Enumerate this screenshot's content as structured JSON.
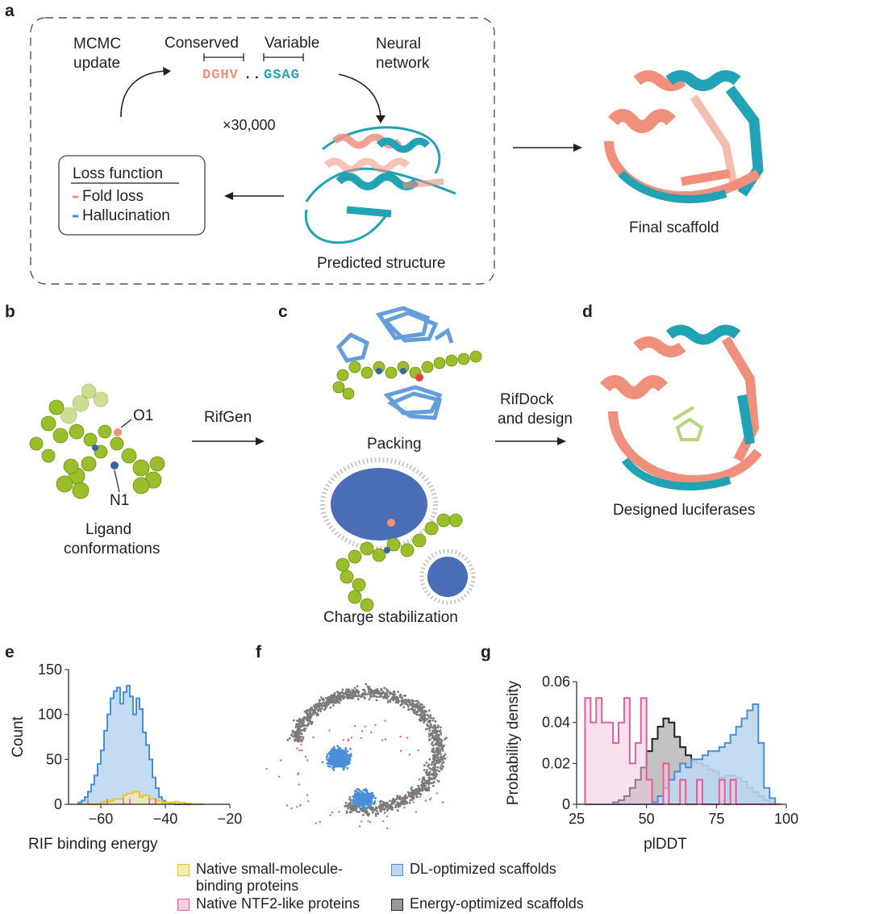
{
  "panels": {
    "a": {
      "letter": "a",
      "mcmc_line1": "MCMC",
      "mcmc_line2": "update",
      "conserved_label": "Conserved",
      "variable_label": "Variable",
      "conserved_seq": "DGHV",
      "dots": "..",
      "variable_seq": "GSAG",
      "nn_line1": "Neural",
      "nn_line2": "network",
      "iterations": "×30,000",
      "loss_title": "Loss function",
      "loss_items": [
        "Fold loss",
        "Hallucination"
      ],
      "predicted_label": "Predicted structure",
      "final_label": "Final scaffold"
    },
    "b": {
      "letter": "b",
      "o1": "O1",
      "n1": "N1",
      "caption_line1": "Ligand",
      "caption_line2": "conformations",
      "rifgen": "RifGen"
    },
    "c": {
      "letter": "c",
      "packing": "Packing",
      "charge": "Charge stabilization",
      "rifdock_line1": "RifDock",
      "rifdock_line2": "and design"
    },
    "d": {
      "letter": "d",
      "caption": "Designed luciferases"
    },
    "e": {
      "letter": "e"
    },
    "f": {
      "letter": "f"
    },
    "g": {
      "letter": "g"
    }
  },
  "colors": {
    "salmon": "#f0907c",
    "teal": "#1fa3b5",
    "ligand_green": "#9bbf2a",
    "dl_blue": "#4a8fd6",
    "dl_blue_fill": "#bcd8f0",
    "energy_gray": "#7a7a7a",
    "native_small_yellow": "#e6c62c",
    "native_ntf2_pink": "#e0609a"
  },
  "legend": [
    {
      "key": "native_small",
      "line1": "Native small-molecule-",
      "line2": "binding proteins",
      "color": "#e6c62c"
    },
    {
      "key": "native_ntf2",
      "line1": "Native NTF2-like proteins",
      "line2": "",
      "color": "#e0609a"
    },
    {
      "key": "dl",
      "line1": "DL-optimized scaffolds",
      "line2": "",
      "color": "#4a8fd6"
    },
    {
      "key": "energy",
      "line1": "Energy-optimized scaffolds",
      "line2": "",
      "color": "#555555"
    }
  ],
  "chart_data": [
    {
      "panel": "e",
      "type": "area",
      "xlabel": "RIF binding energy",
      "ylabel": "Count",
      "xlim": [
        -70,
        -20
      ],
      "ylim": [
        0,
        150
      ],
      "xticks": [
        -60,
        -40,
        -20
      ],
      "yticks": [
        0,
        50,
        100,
        150
      ],
      "bin_edges": [
        -67,
        -66,
        -65,
        -64,
        -63,
        -62,
        -61,
        -60,
        -59,
        -58,
        -57,
        -56,
        -55,
        -54,
        -53,
        -52,
        -51,
        -50,
        -49,
        -48,
        -47,
        -46,
        -45,
        -44,
        -43,
        -42,
        -41,
        -40,
        -39,
        -38,
        -37,
        -36,
        -35,
        -34,
        -33,
        -32,
        -31,
        -30,
        -29,
        -28
      ],
      "series": [
        {
          "key": "dl",
          "values": [
            2,
            4,
            8,
            14,
            22,
            32,
            45,
            60,
            82,
            100,
            118,
            126,
            130,
            112,
            125,
            132,
            120,
            100,
            118,
            106,
            80,
            66,
            50,
            30,
            18,
            8,
            4,
            2,
            1,
            1,
            0,
            0,
            0,
            0,
            0,
            0,
            0,
            0,
            0
          ]
        },
        {
          "key": "native_small",
          "values": [
            0,
            0,
            0,
            0,
            0,
            0,
            0,
            2,
            3,
            3,
            4,
            6,
            6,
            6,
            10,
            12,
            12,
            14,
            14,
            8,
            10,
            10,
            6,
            6,
            4,
            4,
            2,
            2,
            2,
            2,
            3,
            2,
            2,
            1,
            1,
            0,
            0,
            0,
            0
          ]
        }
      ],
      "ntf2_ticks": [
        -64,
        -58,
        -53,
        -51,
        -45,
        -43
      ]
    },
    {
      "panel": "f",
      "type": "scatter",
      "description_series": [
        "dl",
        "energy",
        "native_ntf2"
      ]
    },
    {
      "panel": "g",
      "type": "area",
      "xlabel": "plDDT",
      "ylabel": "Probability density",
      "xlim": [
        25,
        100
      ],
      "ylim": [
        0,
        0.06
      ],
      "xticks": [
        25,
        50,
        75,
        100
      ],
      "yticks": [
        0,
        0.02,
        0.04,
        0.06
      ],
      "ytick_labels": [
        "0",
        "0.02",
        "0.04",
        "0.06"
      ],
      "bin_edges": [
        28,
        30,
        32,
        34,
        36,
        38,
        40,
        42,
        44,
        46,
        48,
        50,
        52,
        54,
        56,
        58,
        60,
        62,
        64,
        66,
        68,
        70,
        72,
        74,
        76,
        78,
        80,
        82,
        84,
        86,
        88,
        90,
        92,
        94,
        96,
        98
      ],
      "series": [
        {
          "key": "energy",
          "values": [
            0,
            0,
            0,
            0,
            0,
            0.001,
            0.002,
            0.004,
            0.008,
            0.012,
            0.018,
            0.026,
            0.032,
            0.038,
            0.042,
            0.04,
            0.033,
            0.028,
            0.024,
            0.021,
            0.02,
            0.019,
            0.017,
            0.016,
            0.013,
            0.014,
            0.014,
            0.013,
            0.011,
            0.008,
            0.006,
            0.004,
            0.002,
            0.001,
            0
          ]
        },
        {
          "key": "dl",
          "values": [
            0,
            0,
            0,
            0,
            0,
            0,
            0,
            0,
            0,
            0,
            0,
            0,
            0.001,
            0.004,
            0.008,
            0.012,
            0.016,
            0.02,
            0.018,
            0.022,
            0.022,
            0.024,
            0.026,
            0.026,
            0.028,
            0.03,
            0.034,
            0.038,
            0.042,
            0.046,
            0.049,
            0.03,
            0.008,
            0.003,
            0
          ]
        },
        {
          "key": "native_ntf2",
          "values": [
            0.052,
            0.04,
            0.052,
            0.04,
            0.04,
            0.03,
            0.04,
            0.052,
            0.02,
            0.03,
            0.052,
            0.012,
            0,
            0,
            0.02,
            0,
            0,
            0.012,
            0,
            0,
            0.012,
            0,
            0,
            0,
            0.012,
            0,
            0.012,
            0,
            0,
            0,
            0,
            0,
            0,
            0,
            0
          ]
        }
      ]
    }
  ]
}
